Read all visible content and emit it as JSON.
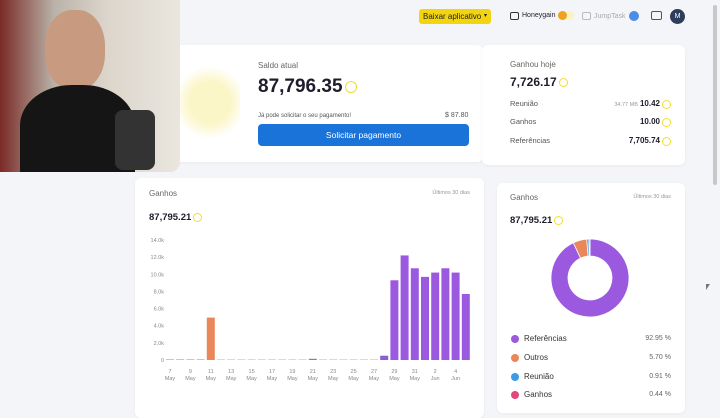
{
  "header": {
    "download_label": "Baixar aplicativo",
    "honeygain_label": "Honeygain",
    "jumptask_label": "JumpTask",
    "avatar_initial": "M"
  },
  "balance": {
    "label": "Saldo atual",
    "value": "87,796.35",
    "payout_msg": "Já pode solicitar o seu pagamento!",
    "usd": "$ 87.80",
    "button": "Solicitar pagamento"
  },
  "today": {
    "label": "Ganhou hoje",
    "value": "7,726.17",
    "rows": [
      {
        "label": "Reunião",
        "extra": "34.77 MB",
        "value": "10.42"
      },
      {
        "label": "Ganhos",
        "extra": "",
        "value": "10.00"
      },
      {
        "label": "Referências",
        "extra": "",
        "value": "7,705.74"
      }
    ]
  },
  "earnings_chart": {
    "title": "Ganhos",
    "period": "Últimos 30 dias",
    "total": "87,795.21"
  },
  "earnings_pie": {
    "title": "Ganhos",
    "period": "Últimos 30 dias",
    "total": "87,795.21"
  },
  "chart_data": [
    {
      "type": "bar",
      "ylim": [
        0,
        14000
      ],
      "yticks": [
        "0",
        "2.0k",
        "4.0k",
        "6.0k",
        "8.0k",
        "10.0k",
        "12.0k",
        "14.0k"
      ],
      "xtick_labels": [
        [
          "7",
          "May"
        ],
        [
          "9",
          "May"
        ],
        [
          "11",
          "May"
        ],
        [
          "13",
          "May"
        ],
        [
          "15",
          "May"
        ],
        [
          "17",
          "May"
        ],
        [
          "19",
          "May"
        ],
        [
          "21",
          "May"
        ],
        [
          "23",
          "May"
        ],
        [
          "25",
          "May"
        ],
        [
          "27",
          "May"
        ],
        [
          "29",
          "May"
        ],
        [
          "31",
          "May"
        ],
        [
          "2",
          "Jun"
        ],
        [
          "4",
          "Jun"
        ]
      ],
      "categories": [
        "7 May",
        "8 May",
        "9 May",
        "10 May",
        "11 May",
        "12 May",
        "13 May",
        "14 May",
        "15 May",
        "16 May",
        "17 May",
        "18 May",
        "19 May",
        "20 May",
        "21 May",
        "22 May",
        "23 May",
        "24 May",
        "25 May",
        "26 May",
        "27 May",
        "28 May",
        "29 May",
        "30 May",
        "31 May",
        "1 Jun",
        "2 Jun",
        "3 Jun",
        "4 Jun",
        "5 Jun"
      ],
      "values": [
        0,
        0,
        0,
        0,
        4950,
        60,
        50,
        60,
        70,
        60,
        40,
        60,
        70,
        50,
        140,
        60,
        50,
        50,
        30,
        30,
        20,
        500,
        9300,
        12200,
        10700,
        9700,
        10200,
        10700,
        10200,
        7700
      ],
      "colors": [
        "#e9875a",
        "#e9875a",
        "#e9875a",
        "#e9875a",
        "#e9875a",
        "#c9b8e8",
        "#c9b8e8",
        "#c9b8e8",
        "#c9b8e8",
        "#c9b8e8",
        "#c9b8e8",
        "#c9b8e8",
        "#c9b8e8",
        "#c9b8e8",
        "#8a7aa8",
        "#c9b8e8",
        "#c9b8e8",
        "#c9b8e8",
        "#c9b8e8",
        "#c9b8e8",
        "#c9b8e8",
        "#8a5fd0",
        "#9b59e0",
        "#9b59e0",
        "#9b59e0",
        "#9b59e0",
        "#9b59e0",
        "#9b59e0",
        "#9b59e0",
        "#9b59e0"
      ]
    },
    {
      "type": "pie",
      "donut": true,
      "slices": [
        {
          "name": "Referências",
          "value": 92.95,
          "label": "92.95 %",
          "color": "#9b59e0"
        },
        {
          "name": "Outros",
          "value": 5.7,
          "label": "5.70 %",
          "color": "#e9875a"
        },
        {
          "name": "Reunião",
          "value": 0.91,
          "label": "0.91 %",
          "color": "#3b9be8"
        },
        {
          "name": "Ganhos",
          "value": 0.44,
          "label": "0.44 %",
          "color": "#e0487a"
        }
      ]
    }
  ]
}
